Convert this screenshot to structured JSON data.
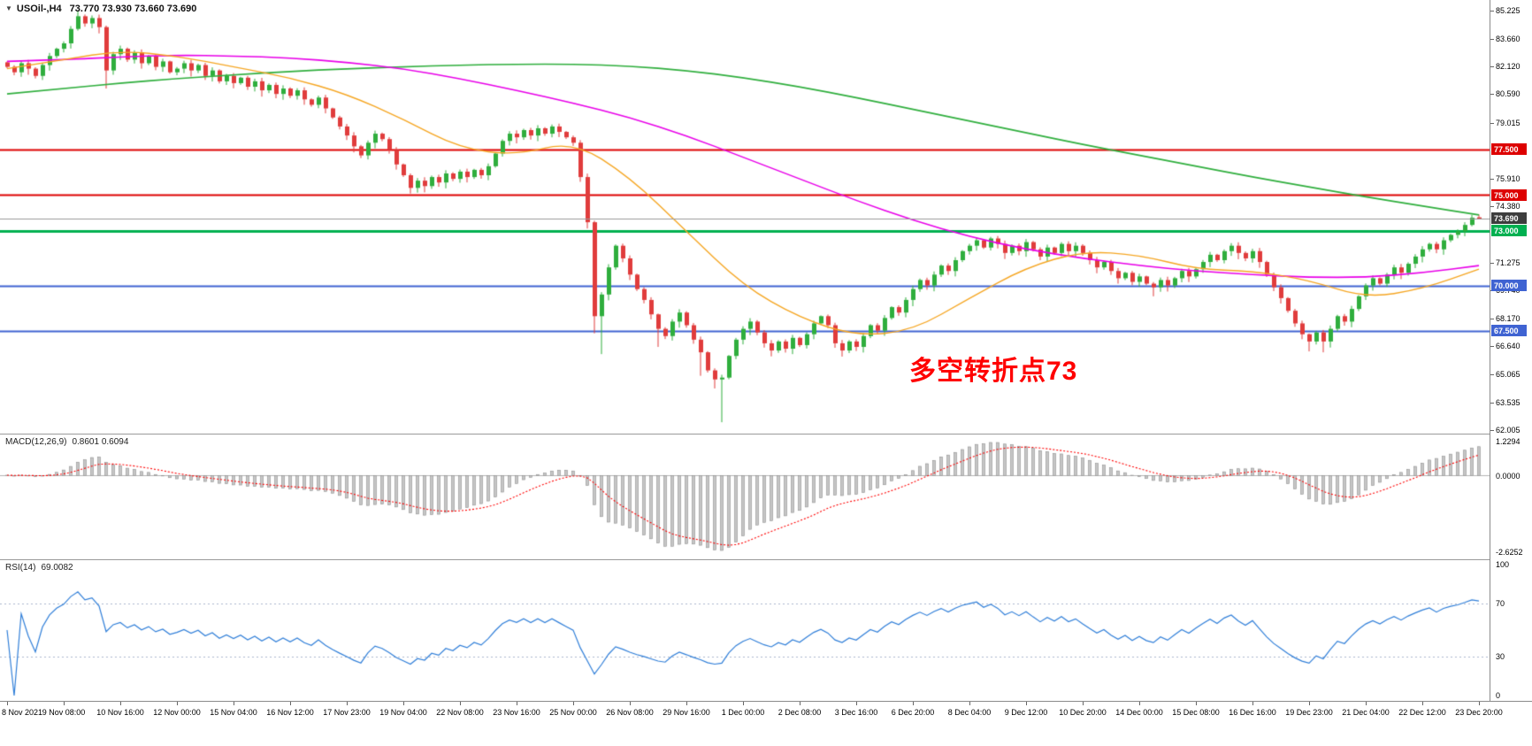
{
  "header": {
    "dropdown_arrow": "▼",
    "symbol_timeframe": "USOil-,H4",
    "ohlc_text": "73.770 73.930 73.660 73.690"
  },
  "chart_data": {
    "type": "candlestick",
    "symbol": "USOil-",
    "timeframe": "H4",
    "ohlc_current": {
      "open": 73.77,
      "high": 73.93,
      "low": 73.66,
      "close": 73.69
    },
    "ylim": [
      61.8,
      85.8
    ],
    "price_axis_labels": [
      "85.225",
      "83.660",
      "82.120",
      "80.590",
      "79.015",
      "75.910",
      "74.380",
      "71.275",
      "69.740",
      "68.170",
      "66.640",
      "65.065",
      "63.535",
      "62.005"
    ],
    "time_axis_labels": [
      "8 Nov 2021",
      "9 Nov 08:00",
      "10 Nov 16:00",
      "12 Nov 00:00",
      "15 Nov 04:00",
      "16 Nov 12:00",
      "17 Nov 23:00",
      "19 Nov 04:00",
      "22 Nov 08:00",
      "23 Nov 16:00",
      "25 Nov 00:00",
      "26 Nov 08:00",
      "29 Nov 16:00",
      "1 Dec 00:00",
      "2 Dec 08:00",
      "3 Dec 16:00",
      "6 Dec 20:00",
      "8 Dec 04:00",
      "9 Dec 12:00",
      "10 Dec 20:00",
      "14 Dec 00:00",
      "15 Dec 08:00",
      "16 Dec 16:00",
      "19 Dec 23:00",
      "21 Dec 04:00",
      "22 Dec 12:00",
      "23 Dec 20:00"
    ],
    "bars_per_time_label": 8,
    "closes": [
      82.1,
      81.8,
      82.3,
      82.0,
      81.6,
      82.2,
      82.7,
      83.1,
      83.4,
      84.2,
      84.9,
      84.5,
      84.8,
      84.3,
      81.9,
      82.8,
      83.1,
      82.5,
      82.9,
      82.3,
      82.7,
      82.1,
      82.4,
      81.8,
      82.0,
      82.3,
      81.9,
      82.2,
      81.6,
      81.9,
      81.3,
      81.6,
      81.2,
      81.5,
      81.0,
      81.3,
      80.8,
      81.1,
      80.6,
      80.9,
      80.5,
      80.8,
      80.3,
      80.0,
      80.4,
      79.8,
      79.3,
      78.8,
      78.3,
      77.7,
      77.2,
      77.9,
      78.4,
      78.1,
      77.5,
      76.7,
      76.1,
      75.4,
      75.8,
      75.5,
      76.0,
      75.7,
      76.2,
      75.9,
      76.3,
      76.0,
      76.4,
      76.1,
      76.6,
      77.3,
      78.0,
      78.4,
      78.2,
      78.6,
      78.3,
      78.7,
      78.4,
      78.8,
      78.5,
      78.2,
      77.9,
      76.0,
      73.5,
      68.3,
      69.5,
      71.0,
      72.2,
      71.5,
      70.6,
      69.8,
      69.2,
      68.4,
      67.6,
      67.2,
      68.0,
      68.5,
      67.8,
      67.0,
      66.3,
      65.3,
      64.8,
      64.9,
      66.1,
      67.0,
      67.6,
      68.0,
      67.4,
      66.8,
      66.4,
      66.9,
      66.5,
      67.1,
      66.7,
      67.3,
      67.9,
      68.3,
      67.8,
      66.8,
      66.4,
      66.9,
      66.6,
      67.2,
      67.8,
      67.5,
      68.2,
      68.8,
      68.5,
      69.2,
      69.8,
      70.3,
      70.0,
      70.6,
      71.1,
      70.8,
      71.4,
      71.9,
      72.2,
      72.5,
      72.1,
      72.6,
      72.3,
      71.8,
      72.2,
      71.9,
      72.4,
      72.0,
      71.6,
      72.1,
      71.8,
      72.3,
      71.9,
      72.2,
      71.8,
      71.4,
      71.0,
      71.3,
      70.8,
      70.4,
      70.7,
      70.2,
      70.5,
      70.1,
      69.9,
      70.3,
      70.0,
      70.4,
      70.8,
      70.5,
      70.9,
      71.3,
      71.7,
      71.4,
      71.9,
      72.2,
      71.8,
      71.5,
      71.9,
      71.3,
      70.6,
      69.9,
      69.3,
      68.6,
      67.9,
      67.3,
      66.9,
      67.4,
      66.9,
      67.6,
      68.3,
      68.0,
      68.7,
      69.4,
      70.0,
      70.4,
      70.1,
      70.6,
      71.0,
      70.7,
      71.2,
      71.6,
      72.0,
      72.3,
      72.0,
      72.5,
      72.8,
      73.0,
      73.35,
      73.75,
      73.69
    ],
    "wick_overrides": {
      "10": {
        "h": 85.22
      },
      "14": {
        "l": 80.9
      },
      "50": {
        "l": 77.05
      },
      "57": {
        "l": 75.09
      },
      "83": {
        "l": 67.35
      },
      "84": {
        "l": 66.2
      },
      "92": {
        "l": 66.6
      },
      "98": {
        "l": 65.0
      },
      "100": {
        "l": 64.3
      },
      "101": {
        "l": 62.43
      },
      "162": {
        "l": 69.4
      },
      "184": {
        "l": 66.35
      },
      "186": {
        "l": 66.3
      },
      "207": {
        "h": 73.9
      },
      "208": {
        "o": 73.77,
        "h": 73.93,
        "l": 73.66,
        "c": 73.69
      }
    },
    "candle_colors": {
      "up": "#2fae3d",
      "down": "#e03c3c"
    },
    "horizontal_lines": [
      {
        "price": 77.5,
        "label": "77.500",
        "color": "#dd0000",
        "width": 2
      },
      {
        "price": 75.0,
        "label": "75.000",
        "color": "#dd0000",
        "width": 2
      },
      {
        "price": 73.0,
        "label": "73.000",
        "color": "#00b050",
        "width": 3
      },
      {
        "price": 70.0,
        "label": "70.000",
        "color": "#3f63d2",
        "width": 2
      },
      {
        "price": 67.5,
        "label": "67.500",
        "color": "#3f63d2",
        "width": 2
      }
    ],
    "current_price_line": {
      "price": 73.69,
      "label": "73.690",
      "line_color": "#9a9a9a",
      "badge_color": "#3d3d3d"
    },
    "moving_averages": [
      {
        "name": "ma-long-green",
        "color": "#2fae3d",
        "line_width": 1.7,
        "sample_step": 8,
        "points": [
          80.6,
          80.9,
          81.2,
          81.45,
          81.65,
          81.85,
          82.0,
          82.1,
          82.2,
          82.25,
          82.25,
          82.15,
          81.9,
          81.5,
          81.0,
          80.4,
          79.75,
          79.1,
          78.45,
          77.8,
          77.2,
          76.6,
          76.0,
          75.45,
          74.9,
          74.4,
          73.9
        ]
      },
      {
        "name": "ma-mid-magenta",
        "color": "#e800e8",
        "line_width": 1.6,
        "sample_step": 8,
        "points": [
          82.4,
          82.5,
          82.65,
          82.75,
          82.7,
          82.6,
          82.35,
          82.0,
          81.45,
          80.8,
          80.1,
          79.3,
          78.3,
          77.1,
          75.9,
          74.7,
          73.6,
          72.7,
          72.0,
          71.5,
          71.1,
          70.8,
          70.6,
          70.45,
          70.45,
          70.7,
          71.1
        ]
      },
      {
        "name": "ma-short-orange",
        "color": "#f5a623",
        "line_width": 1.4,
        "sample_step": 8,
        "points": [
          82.0,
          82.5,
          83.0,
          82.7,
          82.1,
          81.5,
          80.6,
          79.2,
          77.6,
          77.2,
          78.0,
          76.0,
          73.0,
          70.0,
          68.2,
          67.2,
          67.5,
          69.3,
          71.0,
          71.9,
          71.7,
          70.9,
          70.8,
          70.3,
          69.3,
          69.8,
          70.9
        ]
      }
    ],
    "indicators": {
      "macd": {
        "name": "MACD(12,26,9)",
        "values_text": "0.8601 0.6094",
        "fast": 12,
        "slow": 26,
        "signal": 9,
        "scale_top": "1.2294",
        "scale_zero": "0.0000",
        "scale_bottom": "-2.6252",
        "histogram_color": "#c6c6c6",
        "signal_color": "#ff0000"
      },
      "rsi": {
        "name": "RSI(14)",
        "value_text": "69.0082",
        "period": 14,
        "line_color": "#2f7ed8",
        "levels": [
          "100",
          "70",
          "30",
          "0"
        ],
        "level_lines": [
          70,
          30
        ]
      }
    },
    "annotation": {
      "text": "多空转折点73",
      "color": "#ff0000"
    }
  }
}
